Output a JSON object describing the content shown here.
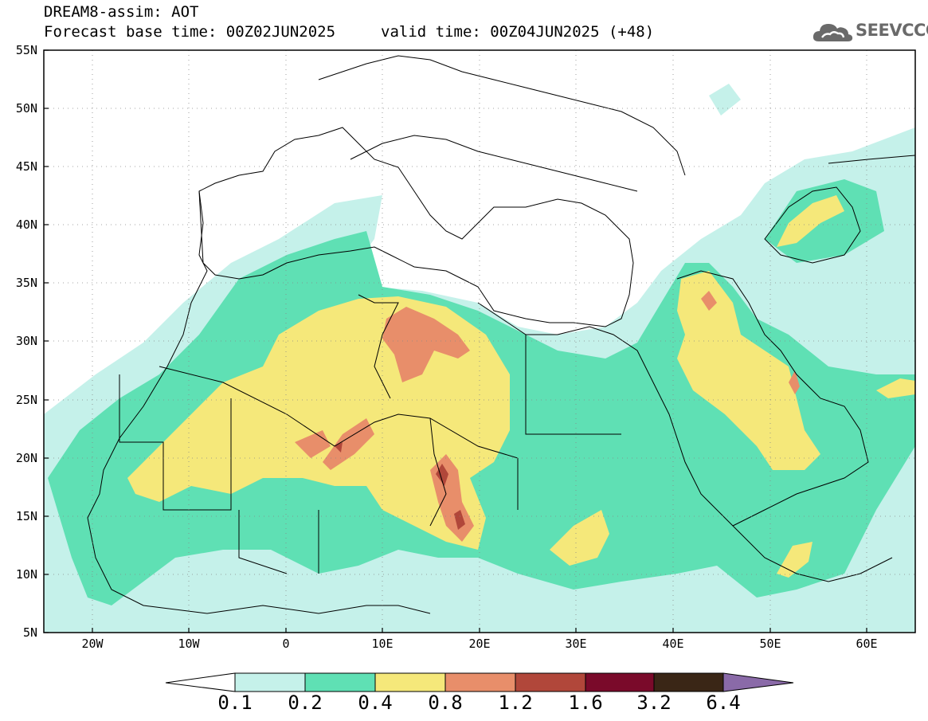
{
  "header": {
    "title": "DREAM8-assim: AOT",
    "base_time": "Forecast base time: 00Z02JUN2025",
    "valid_time": "valid time: 00Z04JUN2025 (+48)"
  },
  "logo": {
    "text": "SEEVCCC",
    "icon": "cloud-icon",
    "color": "#6a6a6a"
  },
  "axes": {
    "lat_labels": [
      "55N",
      "50N",
      "45N",
      "40N",
      "35N",
      "30N",
      "25N",
      "20N",
      "15N",
      "10N",
      "5N"
    ],
    "lon_labels": [
      "20W",
      "10W",
      "0",
      "10E",
      "20E",
      "30E",
      "40E",
      "50E",
      "60E"
    ],
    "lon_range": [
      -25,
      65
    ],
    "lat_range": [
      5,
      55
    ],
    "grid": "dotted"
  },
  "colorbar": {
    "labels": [
      "0.1",
      "0.2",
      "0.4",
      "0.8",
      "1.2",
      "1.6",
      "3.2",
      "6.4"
    ],
    "colors": [
      "#ffffff",
      "#c5f1ea",
      "#5fe0b4",
      "#f5e87a",
      "#e88e6a",
      "#b1473a",
      "#7a0a2a",
      "#3a2616",
      "#8a6aa8"
    ]
  }
}
